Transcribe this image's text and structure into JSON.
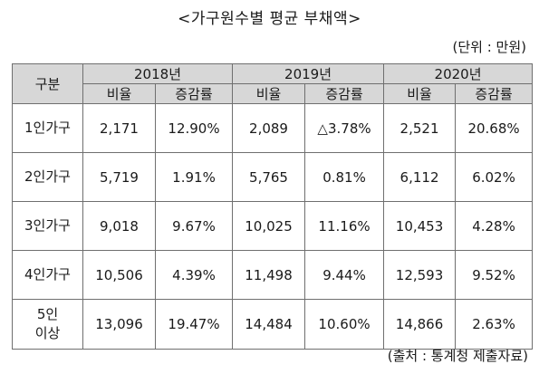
{
  "title": "<가구원수별 평균 부채액>",
  "unit": "(단위 : 만원)",
  "source": "(출처 : 통계청 제출자료)",
  "table": {
    "header_category": "구분",
    "years": [
      "2018년",
      "2019년",
      "2020년"
    ],
    "subheaders": {
      "value": "비율",
      "change": "증감률"
    },
    "rows": [
      {
        "category": "1인가구",
        "category_line2": "",
        "cells": [
          "2,171",
          "12.90%",
          "2,089",
          "△3.78%",
          "2,521",
          "20.68%"
        ]
      },
      {
        "category": "2인가구",
        "category_line2": "",
        "cells": [
          "5,719",
          "1.91%",
          "5,765",
          "0.81%",
          "6,112",
          "6.02%"
        ]
      },
      {
        "category": "3인가구",
        "category_line2": "",
        "cells": [
          "9,018",
          "9.67%",
          "10,025",
          "11.16%",
          "10,453",
          "4.28%"
        ]
      },
      {
        "category": "4인가구",
        "category_line2": "",
        "cells": [
          "10,506",
          "4.39%",
          "11,498",
          "9.44%",
          "12,593",
          "9.52%"
        ]
      },
      {
        "category": "5인",
        "category_line2": "이상",
        "cells": [
          "13,096",
          "19.47%",
          "14,484",
          "10.60%",
          "14,866",
          "2.63%"
        ]
      }
    ]
  }
}
